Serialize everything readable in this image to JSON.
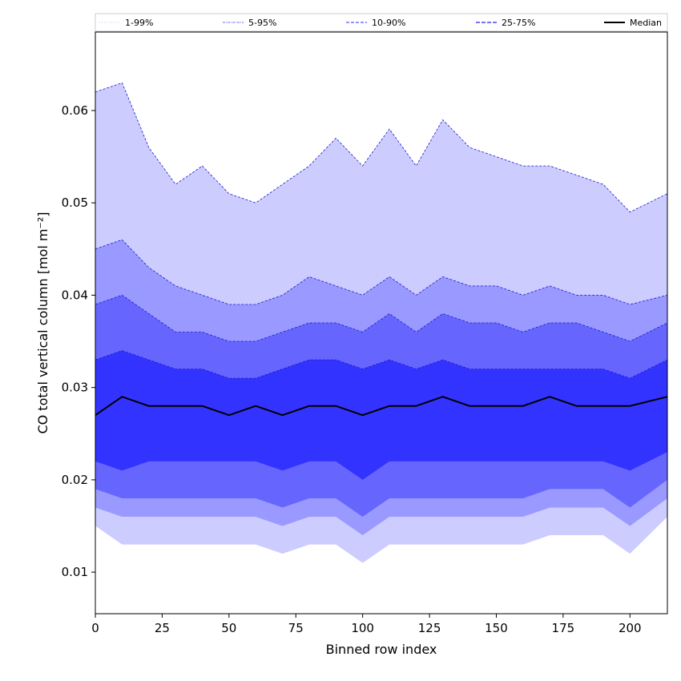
{
  "chart_data": {
    "type": "area",
    "title": "",
    "xlabel": "Binned row index",
    "ylabel": "CO total vertical column [mol m⁻²]",
    "xlim": [
      0,
      214
    ],
    "ylim": [
      0.0055,
      0.0685
    ],
    "xticks": [
      0,
      25,
      50,
      75,
      100,
      125,
      150,
      175,
      200
    ],
    "yticks": [
      0.01,
      0.02,
      0.03,
      0.04,
      0.05,
      0.06
    ],
    "ytick_labels": [
      "0.01",
      "0.02",
      "0.03",
      "0.04",
      "0.05",
      "0.06"
    ],
    "grid": false,
    "legend_position": "top",
    "x_sample": [
      0,
      10,
      20,
      30,
      40,
      50,
      60,
      70,
      80,
      90,
      100,
      110,
      120,
      130,
      140,
      150,
      160,
      170,
      180,
      190,
      200,
      214
    ],
    "series": [
      {
        "name": "1-99%",
        "style": "dotted",
        "color": "#ccccff",
        "upper": [
          0.062,
          0.063,
          0.056,
          0.052,
          0.054,
          0.051,
          0.05,
          0.052,
          0.054,
          0.057,
          0.054,
          0.058,
          0.054,
          0.059,
          0.056,
          0.055,
          0.054,
          0.054,
          0.053,
          0.052,
          0.049,
          0.051
        ],
        "lower": [
          0.015,
          0.013,
          0.013,
          0.013,
          0.013,
          0.013,
          0.013,
          0.012,
          0.013,
          0.013,
          0.011,
          0.013,
          0.013,
          0.013,
          0.013,
          0.013,
          0.013,
          0.014,
          0.014,
          0.014,
          0.012,
          0.016
        ]
      },
      {
        "name": "5-95%",
        "style": "dash-dot",
        "color": "#9999ff",
        "upper": [
          0.045,
          0.046,
          0.043,
          0.041,
          0.04,
          0.039,
          0.039,
          0.04,
          0.042,
          0.041,
          0.04,
          0.042,
          0.04,
          0.042,
          0.041,
          0.041,
          0.04,
          0.041,
          0.04,
          0.04,
          0.039,
          0.04
        ],
        "lower": [
          0.017,
          0.016,
          0.016,
          0.016,
          0.016,
          0.016,
          0.016,
          0.015,
          0.016,
          0.016,
          0.014,
          0.016,
          0.016,
          0.016,
          0.016,
          0.016,
          0.016,
          0.017,
          0.017,
          0.017,
          0.015,
          0.018
        ]
      },
      {
        "name": "10-90%",
        "style": "dashed",
        "color": "#6666ff",
        "upper": [
          0.039,
          0.04,
          0.038,
          0.036,
          0.036,
          0.035,
          0.035,
          0.036,
          0.037,
          0.037,
          0.036,
          0.038,
          0.036,
          0.038,
          0.037,
          0.037,
          0.036,
          0.037,
          0.037,
          0.036,
          0.035,
          0.037
        ],
        "lower": [
          0.019,
          0.018,
          0.018,
          0.018,
          0.018,
          0.018,
          0.018,
          0.017,
          0.018,
          0.018,
          0.016,
          0.018,
          0.018,
          0.018,
          0.018,
          0.018,
          0.018,
          0.019,
          0.019,
          0.019,
          0.017,
          0.02
        ]
      },
      {
        "name": "25-75%",
        "style": "dashed",
        "color": "#3333ff",
        "upper": [
          0.033,
          0.034,
          0.033,
          0.032,
          0.032,
          0.031,
          0.031,
          0.032,
          0.033,
          0.033,
          0.032,
          0.033,
          0.032,
          0.033,
          0.032,
          0.032,
          0.032,
          0.032,
          0.032,
          0.032,
          0.031,
          0.033
        ],
        "lower": [
          0.022,
          0.021,
          0.022,
          0.022,
          0.022,
          0.022,
          0.022,
          0.021,
          0.022,
          0.022,
          0.02,
          0.022,
          0.022,
          0.022,
          0.022,
          0.022,
          0.022,
          0.022,
          0.022,
          0.022,
          0.021,
          0.023
        ]
      },
      {
        "name": "Median",
        "style": "solid",
        "color": "#000000",
        "values": [
          0.027,
          0.029,
          0.028,
          0.028,
          0.028,
          0.027,
          0.028,
          0.027,
          0.028,
          0.028,
          0.027,
          0.028,
          0.028,
          0.029,
          0.028,
          0.028,
          0.028,
          0.029,
          0.028,
          0.028,
          0.028,
          0.029
        ]
      }
    ]
  },
  "legend": {
    "items": [
      {
        "label": "1-99%",
        "color": "#ccccff",
        "dash": "1,2"
      },
      {
        "label": "5-95%",
        "color": "#8888ee",
        "dash": "3,1,1,1"
      },
      {
        "label": "10-90%",
        "color": "#5555ff",
        "dash": "4,2"
      },
      {
        "label": "25-75%",
        "color": "#2222ee",
        "dash": "5,2"
      },
      {
        "label": "Median",
        "color": "#000000",
        "dash": ""
      }
    ]
  }
}
